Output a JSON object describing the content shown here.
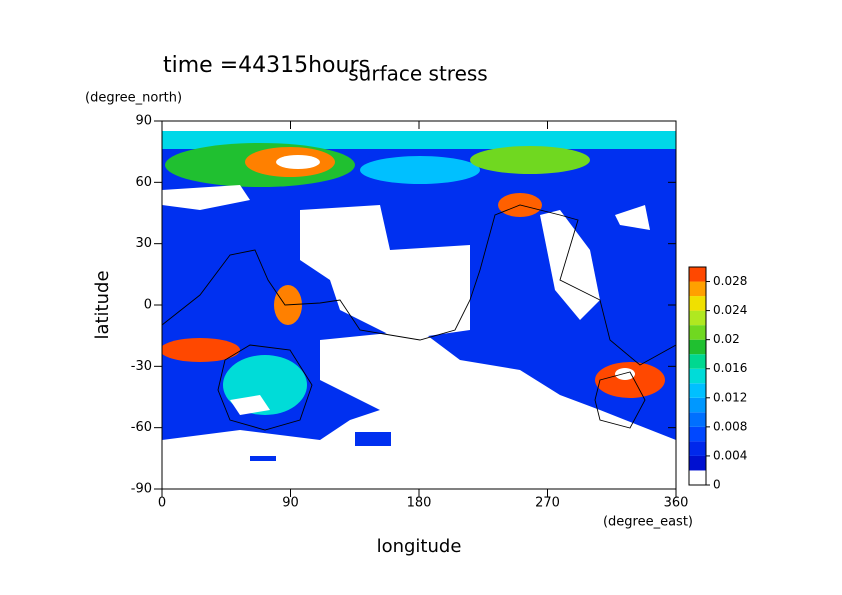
{
  "chart_data": {
    "type": "contour",
    "title": "surface stress",
    "subtitle": "time =44315hours",
    "x_label": "longitude",
    "x_units": "(degree_east)",
    "y_label": "latitude",
    "y_units": "(degree_north)",
    "xlim": [
      0,
      360
    ],
    "xticks": [
      0,
      90,
      180,
      270,
      360
    ],
    "ylim": [
      -90,
      90
    ],
    "yticks": [
      -90,
      -60,
      -30,
      0,
      30,
      60,
      90
    ],
    "colorbar": {
      "lim": [
        0,
        0.03
      ],
      "ticks": [
        0,
        0.004,
        0.008,
        0.012,
        0.016,
        0.02,
        0.024,
        0.028
      ],
      "levels": [
        0,
        0.002,
        0.004,
        0.006,
        0.008,
        0.01,
        0.012,
        0.014,
        0.016,
        0.018,
        0.02,
        0.022,
        0.024,
        0.026,
        0.028,
        0.03
      ],
      "colors": [
        "#ffffff",
        "#0010d0",
        "#0028ec",
        "#0048ff",
        "#0070ff",
        "#0098ff",
        "#00c0ff",
        "#00dcd8",
        "#00d890",
        "#20c030",
        "#70d820",
        "#b0e820",
        "#f0e000",
        "#ffa000",
        "#ff4800"
      ]
    }
  }
}
